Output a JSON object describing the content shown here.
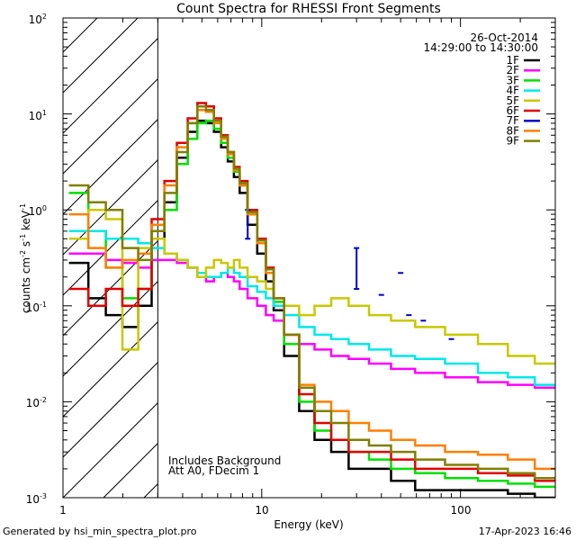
{
  "chart_data": {
    "type": "line",
    "title": "Count Spectra for RHESSI Front Segments",
    "xlabel": "Energy (keV)",
    "ylabel": "counts cm^-2 s^-1 keV^-1",
    "xscale": "log",
    "yscale": "log",
    "xlim": [
      1,
      300
    ],
    "ylim": [
      0.001,
      100
    ],
    "x_tick_labels": [
      "1",
      "10",
      "100"
    ],
    "y_tick_labels": [
      "10^-3",
      "10^-2",
      "10^-1",
      "10^0",
      "10^1",
      "10^2"
    ],
    "date": "26-Oct-2014",
    "time_range": "14:29:00 to 14:30:00",
    "annotations": [
      "Includes Background",
      "Att A0, FDecim 1"
    ],
    "attenuator_threshold_keV": 3,
    "legend": [
      {
        "name": "1F",
        "color": "#000000"
      },
      {
        "name": "2F",
        "color": "#ff00ff"
      },
      {
        "name": "3F",
        "color": "#00e000"
      },
      {
        "name": "4F",
        "color": "#00e8e8"
      },
      {
        "name": "5F",
        "color": "#c8c800"
      },
      {
        "name": "6F",
        "color": "#e00000"
      },
      {
        "name": "7F",
        "color": "#0000c8"
      },
      {
        "name": "8F",
        "color": "#ff7f00"
      },
      {
        "name": "9F",
        "color": "#7f7f00"
      }
    ],
    "series": [
      {
        "name": "1F",
        "x": [
          1.2,
          1.5,
          1.8,
          2.2,
          2.6,
          3.0,
          3.5,
          4.0,
          4.5,
          5.0,
          5.5,
          6.0,
          6.5,
          7.0,
          7.5,
          8.0,
          9.0,
          10.0,
          11.0,
          12.0,
          14.0,
          17.0,
          20.0,
          25.0,
          30.0,
          40.0,
          50.0,
          70.0,
          100.0,
          150.0,
          200.0,
          280.0
        ],
        "y": [
          0.28,
          0.12,
          0.08,
          0.06,
          0.1,
          0.5,
          1.2,
          3.5,
          6.5,
          8.5,
          8.0,
          6.5,
          4.5,
          3.2,
          2.2,
          1.5,
          0.7,
          0.35,
          0.18,
          0.09,
          0.03,
          0.008,
          0.004,
          0.003,
          0.002,
          0.002,
          0.0015,
          0.0012,
          0.0012,
          0.0012,
          0.0011,
          0.001
        ]
      },
      {
        "name": "2F",
        "x": [
          1.2,
          1.5,
          1.8,
          2.2,
          2.6,
          3.0,
          3.5,
          4.0,
          4.5,
          5.0,
          5.5,
          6.0,
          6.5,
          7.0,
          7.5,
          8.0,
          9.0,
          10.0,
          11.0,
          12.0,
          14.0,
          17.0,
          20.0,
          25.0,
          30.0,
          40.0,
          50.0,
          70.0,
          100.0,
          150.0,
          200.0,
          280.0
        ],
        "y": [
          0.35,
          0.35,
          0.3,
          0.28,
          0.25,
          0.3,
          0.3,
          0.28,
          0.25,
          0.2,
          0.18,
          0.2,
          0.22,
          0.2,
          0.18,
          0.15,
          0.12,
          0.1,
          0.08,
          0.07,
          0.05,
          0.04,
          0.035,
          0.03,
          0.028,
          0.025,
          0.022,
          0.02,
          0.018,
          0.016,
          0.015,
          0.014
        ]
      },
      {
        "name": "3F",
        "x": [
          1.2,
          1.5,
          1.8,
          2.2,
          2.6,
          3.0,
          3.5,
          4.0,
          4.5,
          5.0,
          5.5,
          6.0,
          6.5,
          7.0,
          7.5,
          8.0,
          9.0,
          10.0,
          11.0,
          12.0,
          14.0,
          17.0,
          20.0,
          25.0,
          30.0,
          40.0,
          50.0,
          70.0,
          100.0,
          150.0,
          200.0,
          280.0
        ],
        "y": [
          1.5,
          0.6,
          0.25,
          0.12,
          0.15,
          0.6,
          1.0,
          3.0,
          5.5,
          8.0,
          8.5,
          7.0,
          5.0,
          3.5,
          2.5,
          1.8,
          0.9,
          0.45,
          0.22,
          0.11,
          0.04,
          0.01,
          0.005,
          0.004,
          0.003,
          0.0025,
          0.002,
          0.0018,
          0.0016,
          0.0015,
          0.0014,
          0.0013
        ]
      },
      {
        "name": "4F",
        "x": [
          1.2,
          1.5,
          1.8,
          2.2,
          2.6,
          3.0,
          3.5,
          4.0,
          4.5,
          5.0,
          5.5,
          6.0,
          6.5,
          7.0,
          7.5,
          8.0,
          9.0,
          10.0,
          11.0,
          12.0,
          14.0,
          17.0,
          20.0,
          25.0,
          30.0,
          40.0,
          50.0,
          70.0,
          100.0,
          150.0,
          200.0,
          280.0
        ],
        "y": [
          0.6,
          0.6,
          0.5,
          0.5,
          0.45,
          0.4,
          0.35,
          0.3,
          0.25,
          0.22,
          0.2,
          0.2,
          0.22,
          0.25,
          0.22,
          0.2,
          0.16,
          0.14,
          0.12,
          0.1,
          0.08,
          0.06,
          0.05,
          0.045,
          0.04,
          0.035,
          0.03,
          0.028,
          0.025,
          0.02,
          0.018,
          0.015
        ]
      },
      {
        "name": "5F",
        "x": [
          1.2,
          1.5,
          1.8,
          2.2,
          2.6,
          3.0,
          3.5,
          4.0,
          4.5,
          5.0,
          5.5,
          6.0,
          6.5,
          7.0,
          7.5,
          8.0,
          9.0,
          10.0,
          11.0,
          12.0,
          14.0,
          17.0,
          20.0,
          25.0,
          30.0,
          40.0,
          50.0,
          70.0,
          100.0,
          150.0,
          200.0,
          280.0
        ],
        "y": [
          0.5,
          1.0,
          0.8,
          0.035,
          0.4,
          0.5,
          0.35,
          0.3,
          0.25,
          0.2,
          0.25,
          0.3,
          0.28,
          0.25,
          0.3,
          0.25,
          0.2,
          0.18,
          0.15,
          0.12,
          0.1,
          0.08,
          0.1,
          0.12,
          0.1,
          0.08,
          0.07,
          0.06,
          0.05,
          0.04,
          0.03,
          0.025
        ]
      },
      {
        "name": "6F",
        "x": [
          1.2,
          1.5,
          1.8,
          2.2,
          2.6,
          3.0,
          3.5,
          4.0,
          4.5,
          5.0,
          5.5,
          6.0,
          6.5,
          7.0,
          7.5,
          8.0,
          9.0,
          10.0,
          11.0,
          12.0,
          14.0,
          17.0,
          20.0,
          25.0,
          30.0,
          40.0,
          50.0,
          70.0,
          100.0,
          150.0,
          200.0,
          280.0
        ],
        "y": [
          0.15,
          0.1,
          0.15,
          0.1,
          0.15,
          0.8,
          2.0,
          5.0,
          9.0,
          13.0,
          12.0,
          9.0,
          6.0,
          4.0,
          2.8,
          2.0,
          1.0,
          0.5,
          0.25,
          0.12,
          0.05,
          0.012,
          0.006,
          0.004,
          0.003,
          0.003,
          0.0025,
          0.002,
          0.002,
          0.0018,
          0.0017,
          0.0015
        ]
      },
      {
        "name": "7F",
        "x": [
          8.5,
          8.5,
          30.0,
          30.0,
          40.0,
          50.0,
          55.0,
          65.0,
          90.0
        ],
        "y": [
          0.5,
          1.0,
          0.15,
          0.4,
          0.13,
          0.22,
          0.08,
          0.07,
          0.045
        ]
      },
      {
        "name": "8F",
        "x": [
          1.2,
          1.5,
          1.8,
          2.2,
          2.6,
          3.0,
          3.5,
          4.0,
          4.5,
          5.0,
          5.5,
          6.0,
          6.5,
          7.0,
          7.5,
          8.0,
          9.0,
          10.0,
          11.0,
          12.0,
          14.0,
          17.0,
          20.0,
          25.0,
          30.0,
          40.0,
          50.0,
          70.0,
          100.0,
          150.0,
          200.0,
          280.0
        ],
        "y": [
          0.9,
          0.4,
          0.25,
          0.3,
          0.35,
          0.7,
          1.8,
          4.5,
          8.0,
          11.0,
          10.5,
          8.0,
          5.5,
          3.8,
          2.6,
          1.8,
          0.9,
          0.45,
          0.22,
          0.12,
          0.05,
          0.015,
          0.01,
          0.008,
          0.006,
          0.005,
          0.004,
          0.0035,
          0.003,
          0.0028,
          0.0025,
          0.002
        ]
      },
      {
        "name": "9F",
        "x": [
          1.2,
          1.5,
          1.8,
          2.2,
          2.6,
          3.0,
          3.5,
          4.0,
          4.5,
          5.0,
          5.5,
          6.0,
          6.5,
          7.0,
          7.5,
          8.0,
          9.0,
          10.0,
          11.0,
          12.0,
          14.0,
          17.0,
          20.0,
          25.0,
          30.0,
          40.0,
          50.0,
          70.0,
          100.0,
          150.0,
          200.0,
          280.0
        ],
        "y": [
          1.8,
          1.2,
          1.0,
          0.4,
          0.3,
          0.6,
          1.5,
          4.0,
          8.0,
          12.0,
          11.0,
          8.5,
          5.8,
          4.0,
          2.7,
          1.9,
          0.95,
          0.48,
          0.24,
          0.12,
          0.05,
          0.014,
          0.008,
          0.006,
          0.004,
          0.0035,
          0.003,
          0.0025,
          0.0022,
          0.002,
          0.0018,
          0.0016
        ]
      }
    ]
  },
  "footer": {
    "generated_by": "Generated by hsi_min_spectra_plot.pro",
    "timestamp": "17-Apr-2023 16:46"
  }
}
